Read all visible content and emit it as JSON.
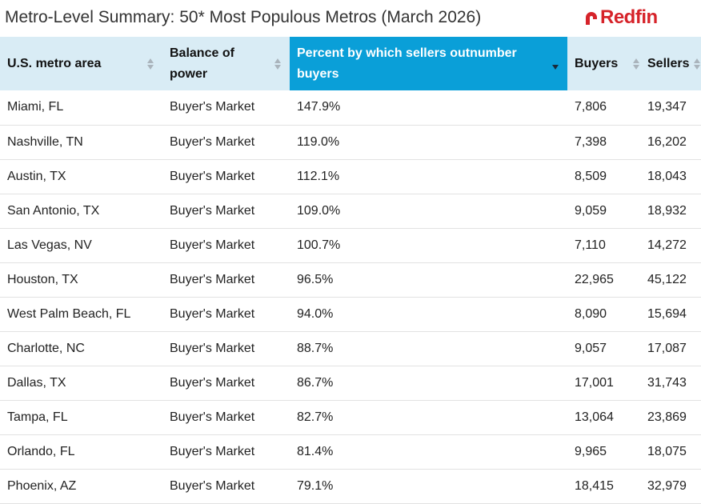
{
  "header": {
    "title": "Metro-Level Summary: 50* Most Populous Metros (March 2026)",
    "logo": "Redfin"
  },
  "table": {
    "columns": [
      "U.S. metro area",
      "Balance of power",
      "Percent by which sellers outnumber buyers",
      "Buyers",
      "Sellers"
    ],
    "rows": [
      [
        "Miami, FL",
        "Buyer's Market",
        "147.9%",
        "7,806",
        "19,347"
      ],
      [
        "Nashville, TN",
        "Buyer's Market",
        "119.0%",
        "7,398",
        "16,202"
      ],
      [
        "Austin, TX",
        "Buyer's Market",
        "112.1%",
        "8,509",
        "18,043"
      ],
      [
        "San Antonio, TX",
        "Buyer's Market",
        "109.0%",
        "9,059",
        "18,932"
      ],
      [
        "Las Vegas, NV",
        "Buyer's Market",
        "100.7%",
        "7,110",
        "14,272"
      ],
      [
        "Houston, TX",
        "Buyer's Market",
        "96.5%",
        "22,965",
        "45,122"
      ],
      [
        "West Palm Beach, FL",
        "Buyer's Market",
        "94.0%",
        "8,090",
        "15,694"
      ],
      [
        "Charlotte, NC",
        "Buyer's Market",
        "88.7%",
        "9,057",
        "17,087"
      ],
      [
        "Dallas, TX",
        "Buyer's Market",
        "86.7%",
        "17,001",
        "31,743"
      ],
      [
        "Tampa, FL",
        "Buyer's Market",
        "82.7%",
        "13,064",
        "23,869"
      ],
      [
        "Orlando, FL",
        "Buyer's Market",
        "81.4%",
        "9,965",
        "18,075"
      ],
      [
        "Phoenix, AZ",
        "Buyer's Market",
        "79.1%",
        "18,415",
        "32,979"
      ]
    ]
  }
}
